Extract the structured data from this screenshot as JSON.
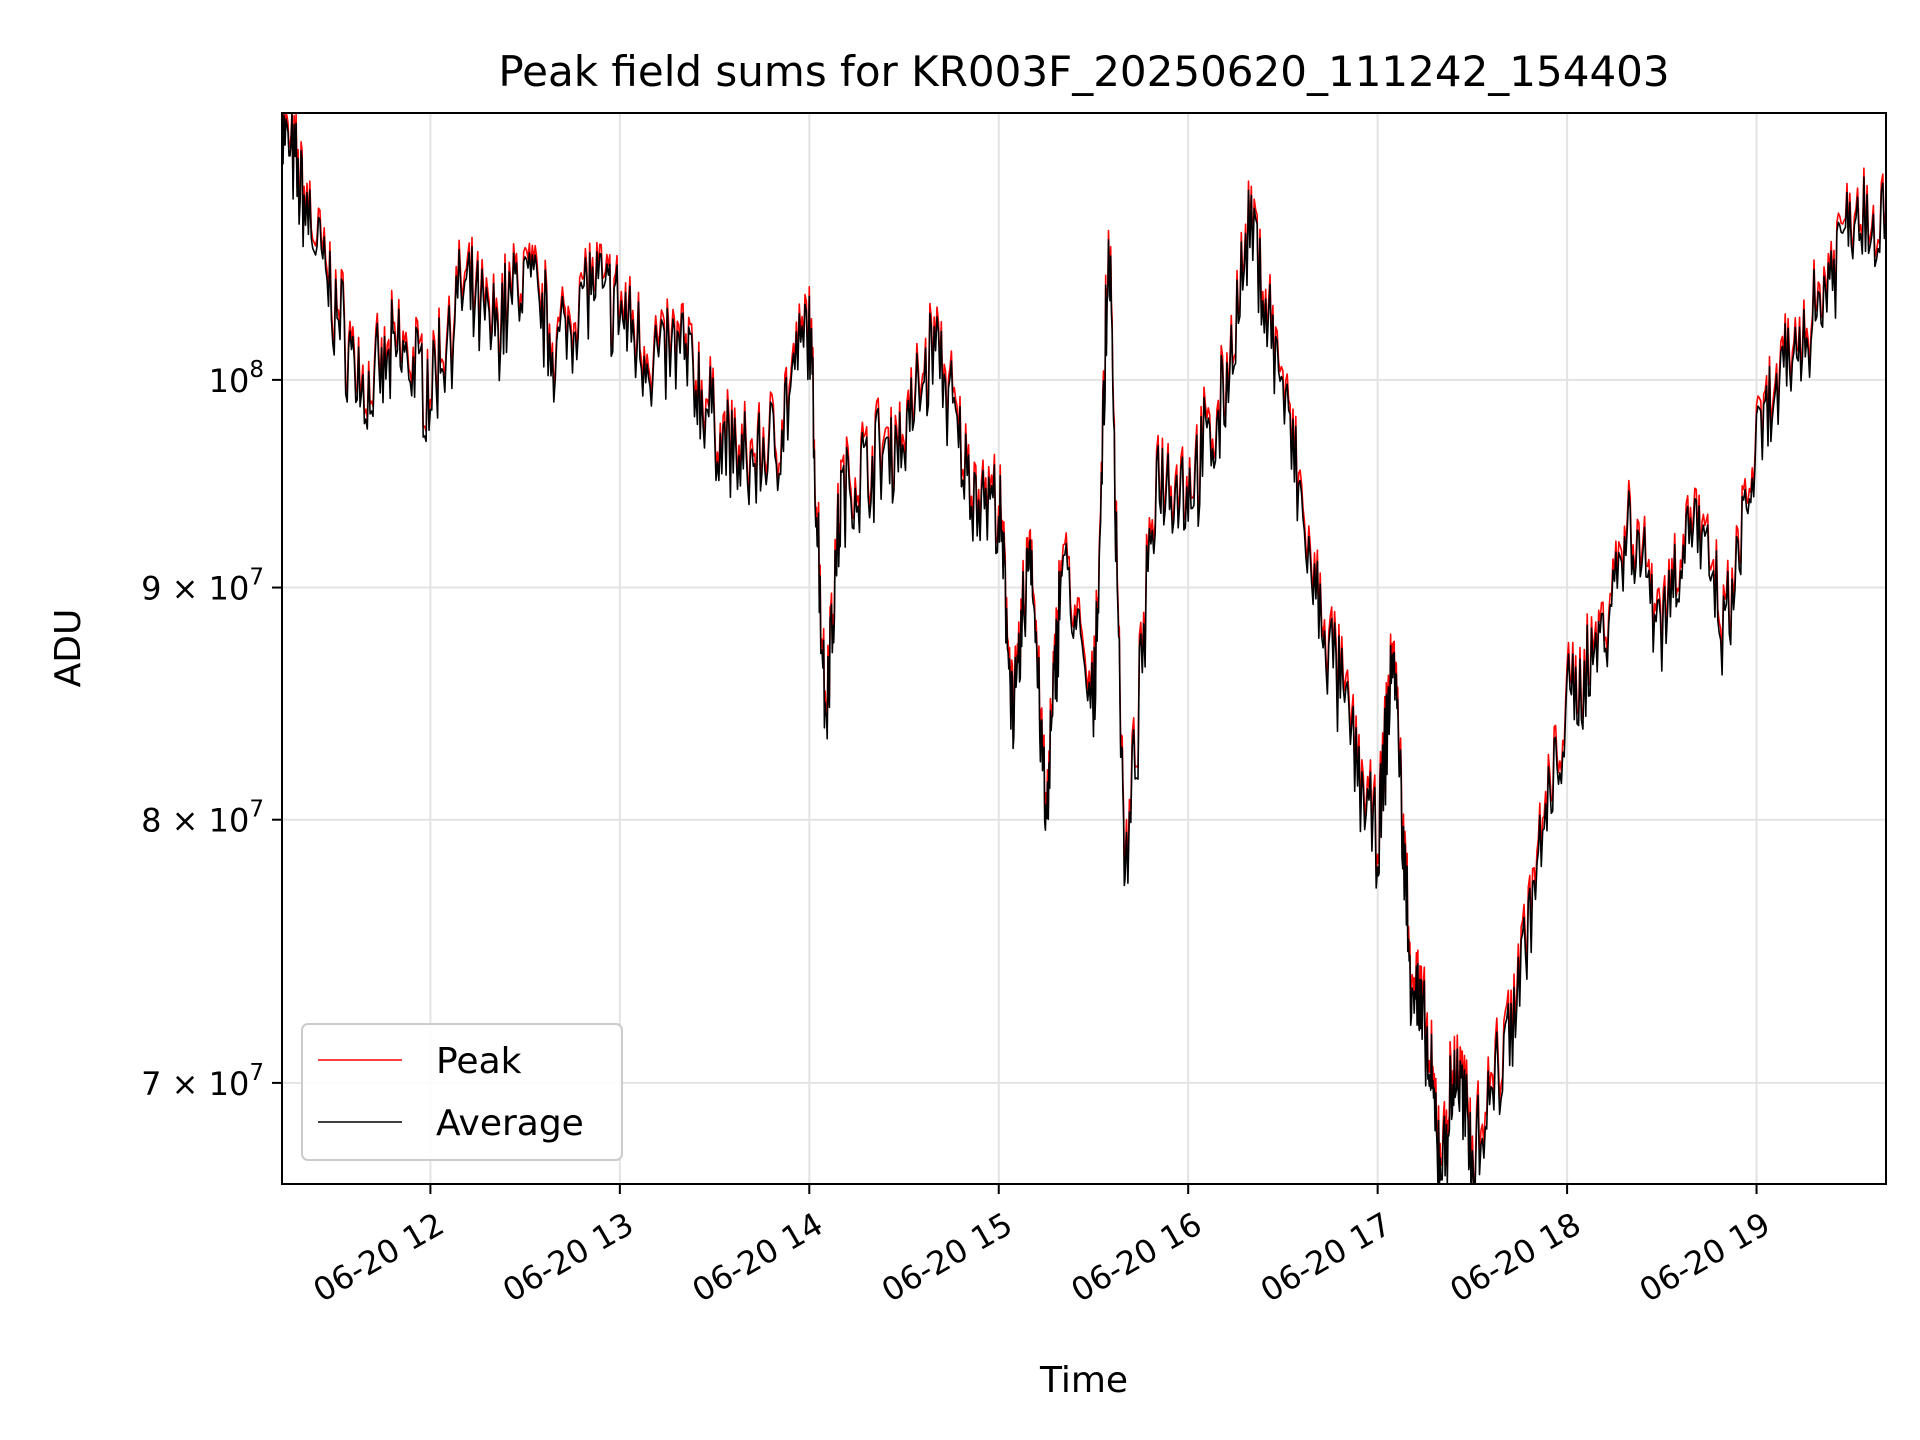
{
  "chart_data": {
    "type": "line",
    "title": "Peak field sums for KR003F_20250620_111242_154403",
    "xlabel": "Time",
    "ylabel": "ADU",
    "yscale": "log",
    "grid": true,
    "legend_position": "lower-left",
    "xlim": [
      "2025-06-20T11:13",
      "2025-06-20T19:41"
    ],
    "ylim": [
      66500000,
      114500000
    ],
    "x_ticks": [
      {
        "value": "2025-06-20T12:00",
        "label": "06-20 12"
      },
      {
        "value": "2025-06-20T13:00",
        "label": "06-20 13"
      },
      {
        "value": "2025-06-20T14:00",
        "label": "06-20 14"
      },
      {
        "value": "2025-06-20T15:00",
        "label": "06-20 15"
      },
      {
        "value": "2025-06-20T16:00",
        "label": "06-20 16"
      },
      {
        "value": "2025-06-20T17:00",
        "label": "06-20 17"
      },
      {
        "value": "2025-06-20T18:00",
        "label": "06-20 18"
      },
      {
        "value": "2025-06-20T19:00",
        "label": "06-20 19"
      }
    ],
    "y_ticks": [
      {
        "value": 100000000,
        "base": "10",
        "exp": "8",
        "mult": ""
      },
      {
        "value": 90000000,
        "base": "10",
        "exp": "7",
        "mult": "9 × "
      },
      {
        "value": 80000000,
        "base": "10",
        "exp": "7",
        "mult": "8 × "
      },
      {
        "value": 70000000,
        "base": "10",
        "exp": "7",
        "mult": "7 × "
      }
    ],
    "x": [
      "11:13",
      "11:20",
      "11:30",
      "11:40",
      "11:50",
      "12:00",
      "12:10",
      "12:20",
      "12:30",
      "12:40",
      "12:50",
      "13:00",
      "13:10",
      "13:20",
      "13:30",
      "13:40",
      "13:50",
      "14:00",
      "14:05",
      "14:10",
      "14:20",
      "14:30",
      "14:40",
      "14:50",
      "15:00",
      "15:05",
      "15:10",
      "15:15",
      "15:20",
      "15:30",
      "15:35",
      "15:40",
      "15:50",
      "16:00",
      "16:10",
      "16:20",
      "16:30",
      "16:40",
      "16:50",
      "17:00",
      "17:05",
      "17:10",
      "17:15",
      "17:20",
      "17:25",
      "17:30",
      "17:40",
      "17:50",
      "18:00",
      "18:10",
      "18:20",
      "18:30",
      "18:40",
      "18:50",
      "19:00",
      "19:10",
      "19:20",
      "19:30",
      "19:41"
    ],
    "series": [
      {
        "name": "Peak",
        "color": "#ff0000",
        "values": [
          114000000,
          110000000,
          104000000,
          99500000,
          102000000,
          100000000,
          105000000,
          103000000,
          106000000,
          102000000,
          105500000,
          104000000,
          101500000,
          102000000,
          98000000,
          96000000,
          97500000,
          103500000,
          85000000,
          94500000,
          96500000,
          97500000,
          102500000,
          95500000,
          94000000,
          84500000,
          93000000,
          80000000,
          92000000,
          84500000,
          108000000,
          77500000,
          96000000,
          95000000,
          98500000,
          108500000,
          100000000,
          90000000,
          85000000,
          79000000,
          88000000,
          75000000,
          72000000,
          67500000,
          71000000,
          68000000,
          71500000,
          78000000,
          85000000,
          88000000,
          93500000,
          89000000,
          94000000,
          88000000,
          97000000,
          101000000,
          104500000,
          109500000,
          109000000
        ]
      },
      {
        "name": "Average",
        "color": "#000000",
        "values": [
          113500000,
          109500000,
          103500000,
          99000000,
          101500000,
          99500000,
          104500000,
          102500000,
          105500000,
          101500000,
          105000000,
          103500000,
          101000000,
          101500000,
          97500000,
          95500000,
          97000000,
          103000000,
          84500000,
          94000000,
          96000000,
          97000000,
          102000000,
          95000000,
          93500000,
          84000000,
          92500000,
          79500000,
          91500000,
          84000000,
          107500000,
          77000000,
          95500000,
          94500000,
          98000000,
          108000000,
          99500000,
          89500000,
          84500000,
          78500000,
          87500000,
          74500000,
          71500000,
          67000000,
          70500000,
          67500000,
          71000000,
          77500000,
          84500000,
          87500000,
          93000000,
          88500000,
          93500000,
          87500000,
          96500000,
          100500000,
          104000000,
          109000000,
          108500000
        ]
      }
    ]
  }
}
